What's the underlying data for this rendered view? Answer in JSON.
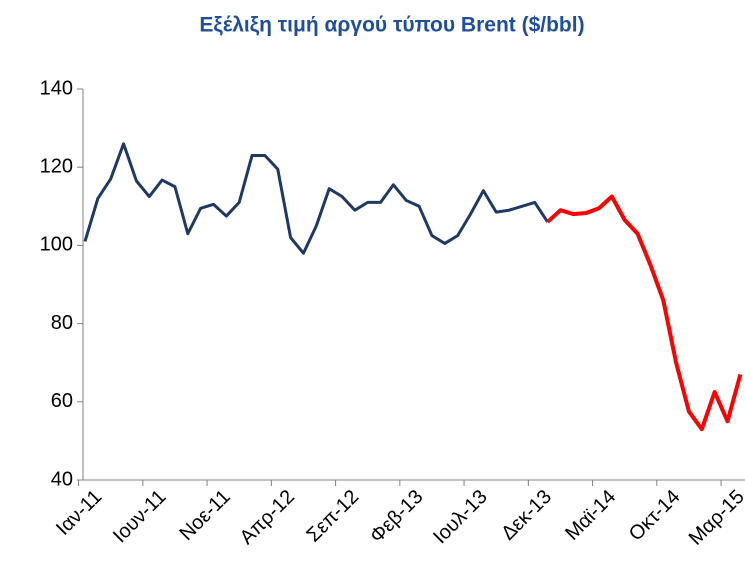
{
  "chart_data": {
    "type": "line",
    "title": "Εξέλιξη τιμή αργού τύπου Brent ($/bbl)",
    "categories": [
      "Ιαν-11",
      null,
      null,
      null,
      null,
      "Ιουν-11",
      null,
      null,
      null,
      null,
      "Νοε-11",
      null,
      null,
      null,
      null,
      "Απρ-12",
      null,
      null,
      null,
      null,
      "Σεπ-12",
      null,
      null,
      null,
      null,
      "Φεβ-13",
      null,
      null,
      null,
      null,
      "Ιουλ-13",
      null,
      null,
      null,
      null,
      "Δεκ-13",
      null,
      null,
      null,
      null,
      "Μαϊ-14",
      null,
      null,
      null,
      null,
      "Οκτ-14",
      null,
      null,
      null,
      null,
      "Μαρ-15",
      null
    ],
    "series": [
      {
        "color": "#1f3864",
        "values": [
          101,
          112,
          117,
          126,
          116.5,
          112.5,
          116.7,
          115,
          103,
          109.5,
          110.5,
          107.5,
          111,
          123,
          123,
          119.5,
          102,
          98,
          105,
          114.5,
          112.5,
          109,
          111,
          111,
          115.5,
          111.5,
          110,
          102.5,
          100.5,
          102.5,
          108,
          114,
          108.5,
          109,
          110,
          111,
          106,
          null,
          null,
          null,
          null,
          null,
          null,
          null,
          null,
          null,
          null,
          null,
          null,
          null,
          null,
          null
        ]
      },
      {
        "color": "#ff0000",
        "values": [
          null,
          null,
          null,
          null,
          null,
          null,
          null,
          null,
          null,
          null,
          null,
          null,
          null,
          null,
          null,
          null,
          null,
          null,
          null,
          null,
          null,
          null,
          null,
          null,
          null,
          null,
          null,
          null,
          null,
          null,
          null,
          null,
          null,
          null,
          null,
          null,
          106,
          109,
          108,
          108.3,
          109.5,
          112.5,
          106.5,
          103,
          95,
          86,
          70,
          57.5,
          53,
          62.5,
          55,
          67
        ]
      }
    ],
    "ylim": [
      40,
      140
    ],
    "yticks": [
      40,
      60,
      80,
      100,
      120,
      140
    ],
    "grid": false
  }
}
